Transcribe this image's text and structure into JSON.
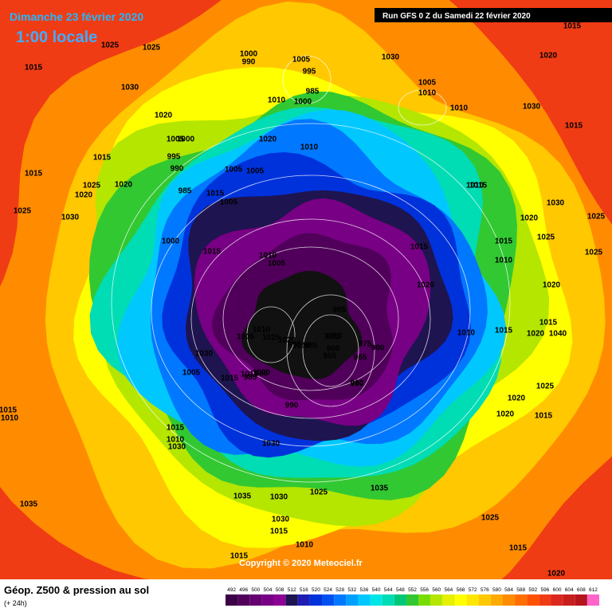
{
  "header": {
    "date": "Dimanche 23 février 2020",
    "time": "1:00 locale",
    "run": "Run GFS 0 Z du Samedi 22 février 2020"
  },
  "footer": {
    "title": "Géop. Z500 & pression au sol",
    "lead": "(+ 24h)",
    "copyright": "Copyright © 2020 Meteociel.fr"
  },
  "colorbar": {
    "ticks": [
      492,
      496,
      500,
      504,
      508,
      512,
      516,
      520,
      524,
      528,
      532,
      536,
      540,
      544,
      548,
      552,
      556,
      560,
      564,
      568,
      572,
      576,
      580,
      584,
      588,
      592,
      596,
      600,
      604,
      608,
      612
    ],
    "colors": [
      "#3c0046",
      "#50005a",
      "#640070",
      "#780084",
      "#8c0096",
      "#1e1450",
      "#1e1eb4",
      "#0032dc",
      "#0050f0",
      "#0078ff",
      "#00a0ff",
      "#00c8ff",
      "#00e6e6",
      "#00dcb4",
      "#00c878",
      "#32c832",
      "#78dc00",
      "#b4e600",
      "#e6f000",
      "#ffff00",
      "#ffe600",
      "#ffc800",
      "#ffaa00",
      "#ff8c00",
      "#ff6e00",
      "#ff5000",
      "#f03c14",
      "#dc281e",
      "#c81e1e",
      "#b4141e",
      "#ff64c8"
    ]
  },
  "isobars": [
    "1015",
    "1025",
    "1030",
    "1015",
    "1020",
    "1025",
    "1015",
    "1020",
    "1025",
    "1030",
    "1020",
    "1025",
    "1000",
    "990",
    "1005",
    "995",
    "985",
    "1000",
    "1010",
    "1005",
    "1000",
    "995",
    "990",
    "985",
    "1010",
    "1030",
    "1005",
    "1010",
    "1020",
    "1010",
    "1015",
    "1005",
    "1005",
    "1015",
    "1005",
    "1015",
    "1030",
    "1015",
    "1020",
    "1015",
    "1010",
    "1015",
    "1020",
    "1015",
    "1010",
    "1020",
    "1000",
    "1010",
    "1005",
    "1015",
    "1010",
    "1005",
    "1025",
    "1020",
    "1030",
    "965",
    "1010",
    "1005",
    "1015",
    "1000",
    "990",
    "985",
    "970",
    "960",
    "955",
    "975",
    "980",
    "965",
    "990",
    "995",
    "1010",
    "985",
    "990",
    "960",
    "1020",
    "1025",
    "1020",
    "1025",
    "1030",
    "1040",
    "1020",
    "1025",
    "1025",
    "1020",
    "1015",
    "1015",
    "1015",
    "1015",
    "1010",
    "1015",
    "1010",
    "1030",
    "1030",
    "1035",
    "1035",
    "1035",
    "1030",
    "1025",
    "1030",
    "1015",
    "1010",
    "1010",
    "1015",
    "1015",
    "1020",
    "1025"
  ]
}
